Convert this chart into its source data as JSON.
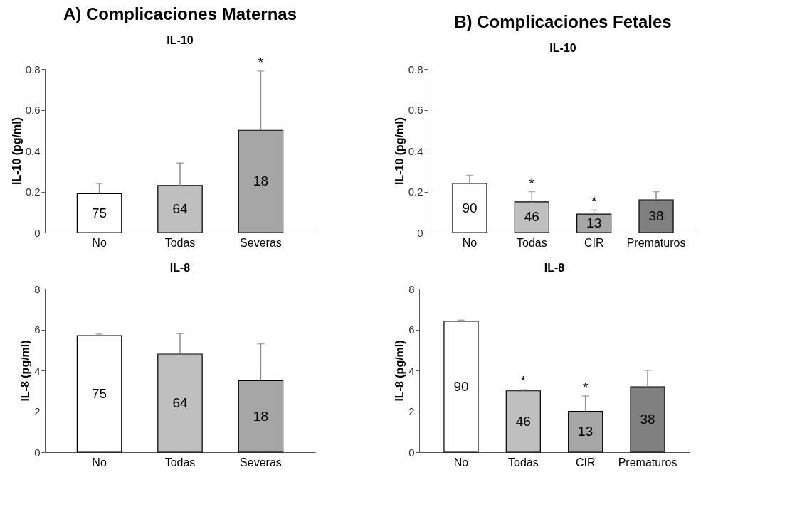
{
  "chart_data": [
    {
      "type": "bar",
      "title": "A) Complicaciones Maternas",
      "subtitle": "IL-10",
      "ylabel": "IL-10 (pg/ml)",
      "categories": [
        "No",
        "Todas",
        "Severas"
      ],
      "values": [
        0.19,
        0.23,
        0.5
      ],
      "colors": [
        "#ffffff",
        "#bfbfbf",
        "#a6a6a6"
      ],
      "errors": [
        [
          0.19,
          0.24
        ],
        [
          0.23,
          0.34
        ],
        [
          0.5,
          0.79
        ]
      ],
      "ylim": [
        0,
        0.8
      ],
      "yticks": [
        {
          "value": 0,
          "label": "0"
        },
        0.2,
        0.4,
        0.6,
        0.8
      ],
      "annotations": [
        "75",
        "64",
        "18",
        {
          "text": "*",
          "x": "Severas",
          "y": 0.79
        }
      ]
    },
    {
      "type": "bar",
      "title": "B) Complicaciones Fetales",
      "subtitle": "IL-10",
      "ylabel": "IL-10 (pg/ml)",
      "categories": [
        "No",
        "Todas",
        "CIR",
        "Prematuros"
      ],
      "values": [
        0.24,
        0.15,
        0.09,
        0.16
      ],
      "colors": [
        "#ffffff",
        "#bfbfbf",
        "#a6a6a6",
        "#808080"
      ],
      "errors": [
        [
          0.24,
          0.28
        ],
        [
          0.15,
          0.2
        ],
        [
          0.09,
          0.11
        ],
        [
          0.16,
          0.2
        ]
      ],
      "ylim": [
        0,
        0.8
      ],
      "yticks": [
        {
          "value": 0,
          "label": "0"
        },
        0.2,
        0.4,
        0.6,
        0.8
      ],
      "annotations": [
        "90",
        "46",
        "13",
        "38",
        {
          "text": "*",
          "x": "Todas",
          "y": 0.2
        },
        {
          "text": "*",
          "x": "CIR",
          "y": 0.11
        }
      ]
    },
    {
      "type": "bar",
      "title": "IL-8",
      "ylabel": "IL-8 (pg/ml)",
      "categories": [
        "No",
        "Todas",
        "Severas"
      ],
      "values": [
        5.7,
        4.8,
        3.5
      ],
      "colors": [
        "#ffffff",
        "#bfbfbf",
        "#a6a6a6"
      ],
      "errors": [
        [
          5.7,
          5.78
        ],
        [
          4.8,
          5.8
        ],
        [
          3.5,
          5.3
        ]
      ],
      "ylim": [
        0,
        8
      ],
      "yticks": [
        0,
        2,
        4,
        6,
        8
      ],
      "annotations": [
        "75",
        "64",
        "18"
      ]
    },
    {
      "type": "bar",
      "title": "IL-8",
      "ylabel": "IL-8 (pg/ml)",
      "categories": [
        "No",
        "Todas",
        "CIR",
        "Prematuros"
      ],
      "values": [
        6.4,
        3.0,
        2.0,
        3.2
      ],
      "colors": [
        "#ffffff",
        "#bfbfbf",
        "#a6a6a6",
        "#808080"
      ],
      "errors": [
        [
          6.4,
          6.46
        ],
        [
          3.0,
          3.05
        ],
        [
          2.0,
          2.75
        ],
        [
          3.2,
          4.0
        ]
      ],
      "ylim": [
        0,
        8
      ],
      "yticks": [
        0,
        2,
        4,
        6,
        8
      ],
      "annotations": [
        "90",
        "46",
        "13",
        "38",
        {
          "text": "*",
          "x": "Todas",
          "y": 3.05
        },
        {
          "text": "*",
          "x": "CIR",
          "y": 2.75
        }
      ]
    }
  ]
}
